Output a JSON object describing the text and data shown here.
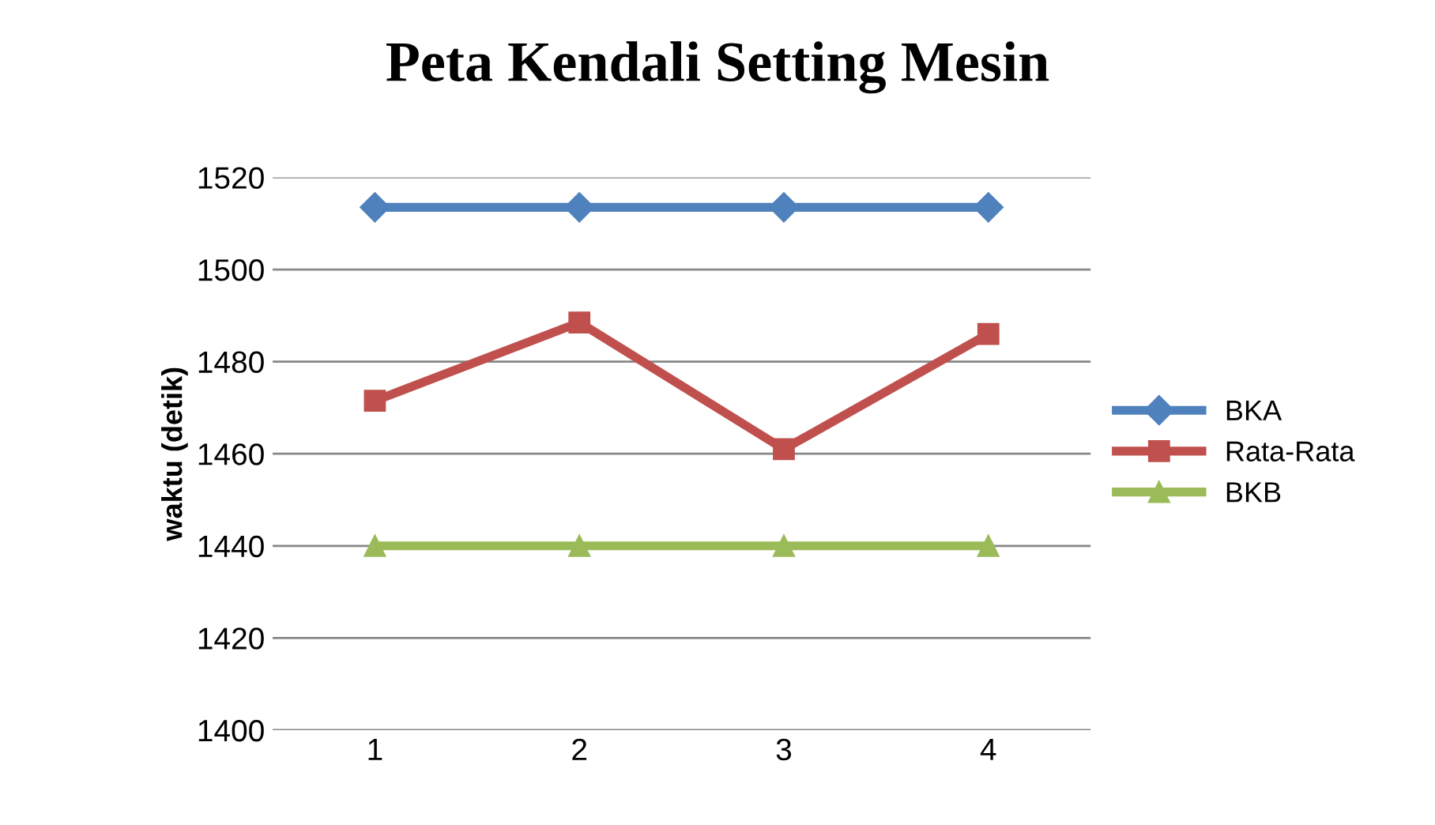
{
  "chart_data": {
    "type": "line",
    "title": "Peta Kendali Setting Mesin",
    "ylabel": "waktu (detik)",
    "categories": [
      "1",
      "2",
      "3",
      "4"
    ],
    "series": [
      {
        "name": "BKA",
        "color": "#4f81bd",
        "marker": "diamond",
        "values": [
          1513.5,
          1513.5,
          1513.5,
          1513.5
        ]
      },
      {
        "name": "Rata-Rata",
        "color": "#c0504d",
        "marker": "square",
        "values": [
          1471.5,
          1488.5,
          1461,
          1486
        ]
      },
      {
        "name": "BKB",
        "color": "#9bbb59",
        "marker": "triangle",
        "values": [
          1440,
          1440,
          1440,
          1440
        ]
      }
    ],
    "ylim": [
      1400,
      1520
    ],
    "yticks": [
      1400,
      1420,
      1440,
      1460,
      1480,
      1500,
      1520
    ],
    "grid": "y",
    "legend": "right",
    "line_style": "solid"
  }
}
